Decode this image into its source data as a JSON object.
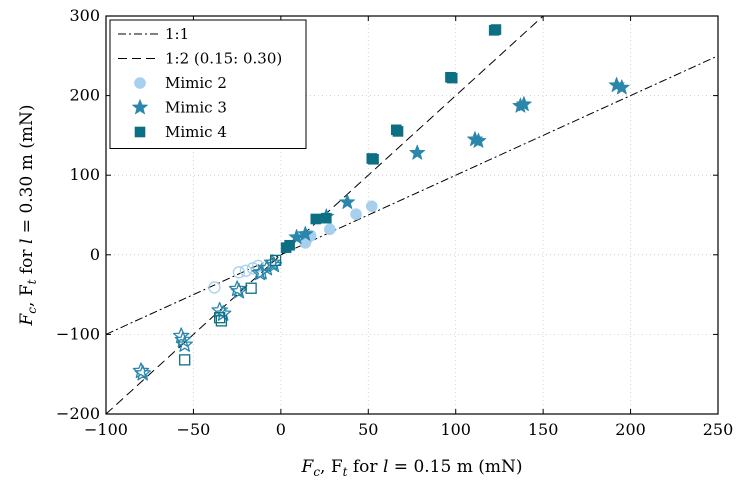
{
  "chart_data": {
    "type": "scatter",
    "xlabel": {
      "pre": "F",
      "sub1": "c",
      "mid": ", F",
      "sub2": "t",
      "post": " for ",
      "var": "l",
      "tail": " = 0.15 m (mN)"
    },
    "ylabel": {
      "pre": "F",
      "sub1": "c",
      "mid": ", F",
      "sub2": "t",
      "post": " for ",
      "var": "l",
      "tail": " = 0.30 m (mN)"
    },
    "xlim": [
      -100,
      250
    ],
    "ylim": [
      -200,
      300
    ],
    "xticks": [
      -100,
      -50,
      0,
      50,
      100,
      150,
      200,
      250
    ],
    "yticks": [
      -200,
      -100,
      0,
      100,
      200,
      300
    ],
    "xtick_labels": [
      "−100",
      "−50",
      "0",
      "50",
      "100",
      "150",
      "200",
      "250"
    ],
    "ytick_labels": [
      "−200",
      "−100",
      "0",
      "100",
      "200",
      "300"
    ],
    "legend_position": "top-left",
    "lines": [
      {
        "name": "1:1",
        "slope": 1,
        "style": "dashdot"
      },
      {
        "name": "1:2 (0.15: 0.30)",
        "slope": 2,
        "style": "dashed"
      }
    ],
    "series": [
      {
        "name": "Mimic 2",
        "marker": "circle",
        "color": "#a6d0ee",
        "filled": [
          [
            14,
            15
          ],
          [
            15,
            20
          ],
          [
            17,
            24
          ],
          [
            28,
            32
          ],
          [
            43,
            51
          ],
          [
            52,
            61
          ]
        ],
        "hollow": [
          [
            -38,
            -41
          ],
          [
            -24,
            -22
          ],
          [
            -20,
            -20
          ],
          [
            -16,
            -17
          ],
          [
            -13,
            -14
          ]
        ]
      },
      {
        "name": "Mimic 3",
        "marker": "star",
        "color": "#2a87ab",
        "filled": [
          [
            9,
            22
          ],
          [
            14,
            26
          ],
          [
            26,
            48
          ],
          [
            38,
            66
          ],
          [
            78,
            128
          ],
          [
            111,
            145
          ],
          [
            113,
            143
          ],
          [
            137,
            187
          ],
          [
            139,
            189
          ],
          [
            192,
            213
          ],
          [
            195,
            210
          ]
        ],
        "hollow": [
          [
            -80,
            -146
          ],
          [
            -79,
            -149
          ],
          [
            -57,
            -102
          ],
          [
            -56,
            -107
          ],
          [
            -55,
            -113
          ],
          [
            -35,
            -70
          ],
          [
            -33,
            -74
          ],
          [
            -25,
            -43
          ],
          [
            -24,
            -46
          ],
          [
            -12,
            -23
          ],
          [
            -11,
            -22
          ],
          [
            -8,
            -17
          ],
          [
            -5,
            -10
          ],
          [
            -4,
            -13
          ]
        ]
      },
      {
        "name": "Mimic 4",
        "marker": "square",
        "color": "#0c6f83",
        "filled": [
          [
            3,
            9
          ],
          [
            5,
            12
          ],
          [
            20,
            45
          ],
          [
            26,
            46
          ],
          [
            52,
            121
          ],
          [
            53,
            120
          ],
          [
            66,
            157
          ],
          [
            67,
            155
          ],
          [
            97,
            223
          ],
          [
            98,
            222
          ],
          [
            122,
            282
          ],
          [
            123,
            283
          ]
        ],
        "hollow": [
          [
            -55,
            -132
          ],
          [
            -35,
            -79
          ],
          [
            -34,
            -83
          ],
          [
            -17,
            -42
          ],
          [
            -3,
            -7
          ]
        ]
      }
    ]
  }
}
